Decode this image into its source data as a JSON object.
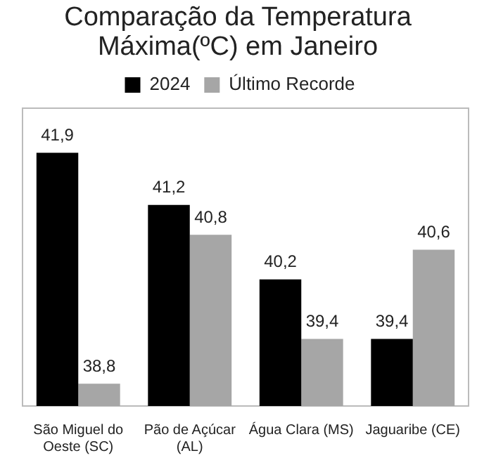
{
  "chart_data": {
    "type": "bar",
    "title": "Comparação da Temperatura Máxima(ºC) em Janeiro",
    "categories": [
      "São Miguel do Oeste (SC)",
      "Pão de Açúcar (AL)",
      "Água Clara (MS)",
      "Jaguaribe (CE)"
    ],
    "series": [
      {
        "name": "2024",
        "color": "#000000",
        "values": [
          41.9,
          41.2,
          40.2,
          39.4
        ],
        "value_labels": [
          "41,9",
          "41,2",
          "40,2",
          "39,4"
        ]
      },
      {
        "name": "Último Recorde",
        "color": "#a6a6a6",
        "values": [
          38.8,
          40.8,
          39.4,
          40.6
        ],
        "value_labels": [
          "38,8",
          "40,8",
          "39,4",
          "40,6"
        ]
      }
    ],
    "tick_labels": "x",
    "grid": false,
    "legend": "top"
  }
}
